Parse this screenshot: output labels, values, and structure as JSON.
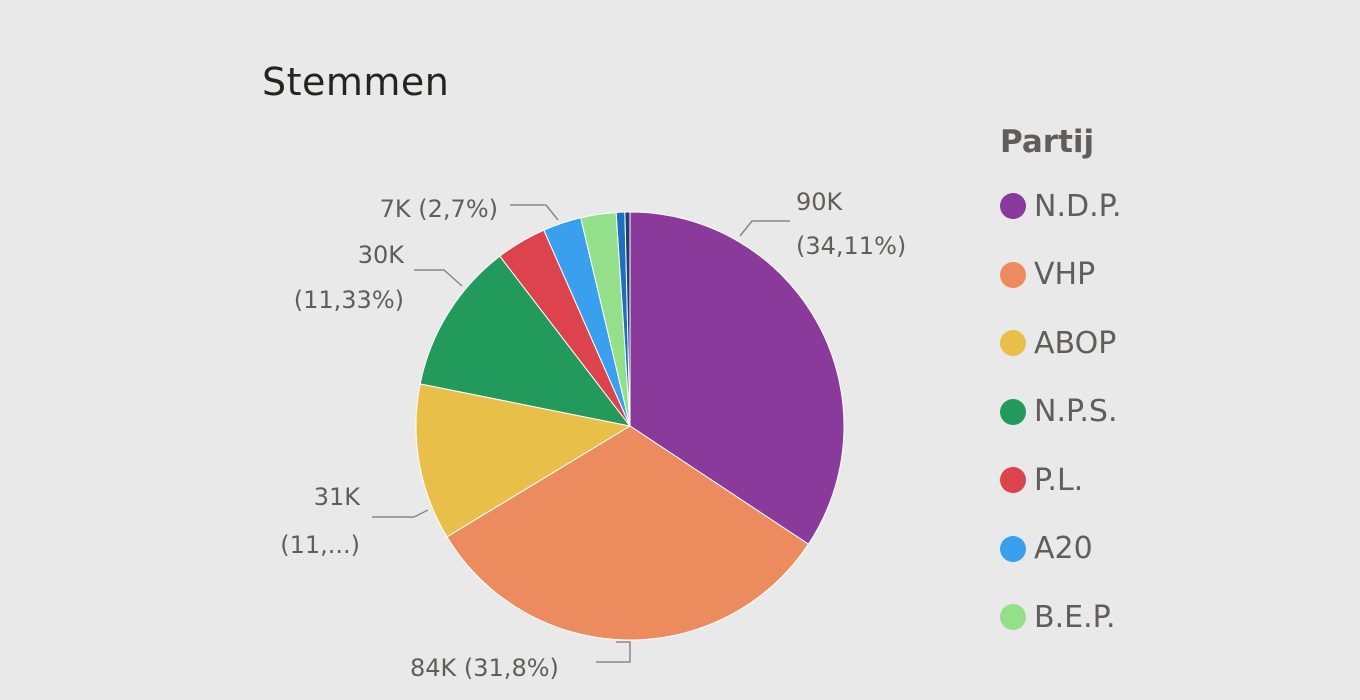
{
  "chart_data": {
    "type": "pie",
    "title": "Stemmen",
    "legend_title": "Partij",
    "legend_position": "right",
    "slices": [
      {
        "name": "N.D.P.",
        "value": 90000,
        "color": "#8a3a9b",
        "label_lines": [
          "90K",
          "(34,11%)"
        ]
      },
      {
        "name": "VHP",
        "value": 84000,
        "color": "#ec8b5e",
        "label_lines": [
          "84K (31,8%)"
        ]
      },
      {
        "name": "ABOP",
        "value": 31000,
        "color": "#e8c049",
        "label_lines": [
          "31K",
          "(11,...)"
        ]
      },
      {
        "name": "N.P.S.",
        "value": 30000,
        "color": "#229a5c",
        "label_lines": [
          "30K",
          "(11,33%)"
        ]
      },
      {
        "name": "P.L.",
        "value": 10000,
        "color": "#dc434c",
        "label_lines": []
      },
      {
        "name": "A20",
        "value": 7600,
        "color": "#3aa0ee",
        "label_lines": []
      },
      {
        "name": "B.E.P.",
        "value": 7000,
        "color": "#94e08a",
        "label_lines": [
          "7K (2,7%)"
        ]
      },
      {
        "name": "",
        "value": 1700,
        "color": "#1f6fbf",
        "label_lines": []
      },
      {
        "name": "",
        "value": 1000,
        "color": "#253c70",
        "label_lines": []
      }
    ]
  }
}
